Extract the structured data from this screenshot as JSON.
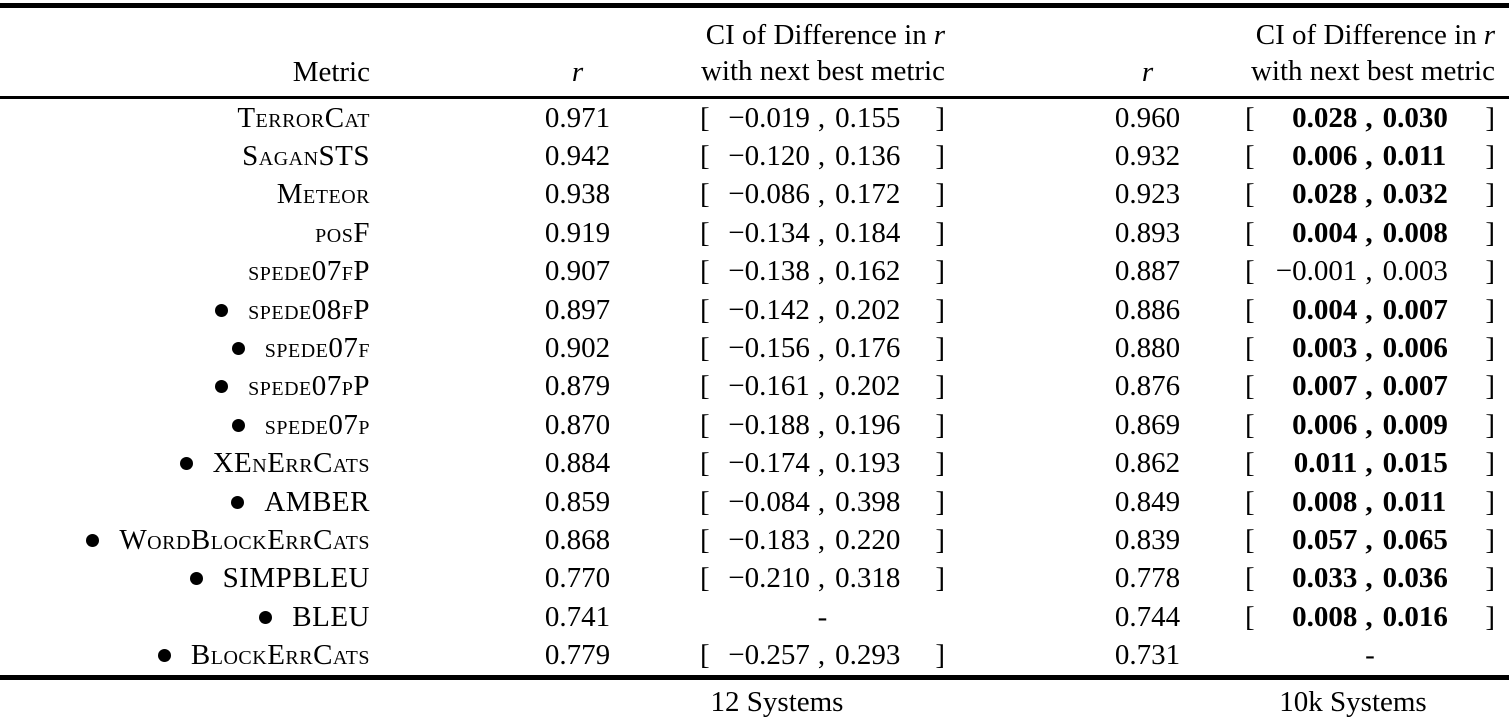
{
  "table": {
    "header": {
      "metric_label": "Metric",
      "r_label": "r",
      "ci_line1_prefix": "CI of Difference in",
      "ci_line2": "with next best metric"
    },
    "no_ci_placeholder": "-",
    "rows": [
      {
        "metric": "TerrorCat",
        "bullet": false,
        "r_12": "0.971",
        "ci_12": {
          "lo": "−0.019",
          "hi": "0.155",
          "bold": false
        },
        "r_10k": "0.960",
        "ci_10k": {
          "lo": "0.028",
          "hi": "0.030",
          "bold": true
        }
      },
      {
        "metric": "SaganSTS",
        "bullet": false,
        "r_12": "0.942",
        "ci_12": {
          "lo": "−0.120",
          "hi": "0.136",
          "bold": false
        },
        "r_10k": "0.932",
        "ci_10k": {
          "lo": "0.006",
          "hi": "0.011",
          "bold": true
        }
      },
      {
        "metric": "Meteor",
        "bullet": false,
        "r_12": "0.938",
        "ci_12": {
          "lo": "−0.086",
          "hi": "0.172",
          "bold": false
        },
        "r_10k": "0.923",
        "ci_10k": {
          "lo": "0.028",
          "hi": "0.032",
          "bold": true
        }
      },
      {
        "metric": "posF",
        "bullet": false,
        "r_12": "0.919",
        "ci_12": {
          "lo": "−0.134",
          "hi": "0.184",
          "bold": false
        },
        "r_10k": "0.893",
        "ci_10k": {
          "lo": "0.004",
          "hi": "0.008",
          "bold": true
        }
      },
      {
        "metric": "spede07fP",
        "bullet": false,
        "r_12": "0.907",
        "ci_12": {
          "lo": "−0.138",
          "hi": "0.162",
          "bold": false
        },
        "r_10k": "0.887",
        "ci_10k": {
          "lo": "−0.001",
          "hi": "0.003",
          "bold": false
        }
      },
      {
        "metric": "spede08fP",
        "bullet": true,
        "r_12": "0.897",
        "ci_12": {
          "lo": "−0.142",
          "hi": "0.202",
          "bold": false
        },
        "r_10k": "0.886",
        "ci_10k": {
          "lo": "0.004",
          "hi": "0.007",
          "bold": true
        }
      },
      {
        "metric": "spede07f",
        "bullet": true,
        "r_12": "0.902",
        "ci_12": {
          "lo": "−0.156",
          "hi": "0.176",
          "bold": false
        },
        "r_10k": "0.880",
        "ci_10k": {
          "lo": "0.003",
          "hi": "0.006",
          "bold": true
        }
      },
      {
        "metric": "spede07pP",
        "bullet": true,
        "r_12": "0.879",
        "ci_12": {
          "lo": "−0.161",
          "hi": "0.202",
          "bold": false
        },
        "r_10k": "0.876",
        "ci_10k": {
          "lo": "0.007",
          "hi": "0.007",
          "bold": true
        }
      },
      {
        "metric": "spede07p",
        "bullet": true,
        "r_12": "0.870",
        "ci_12": {
          "lo": "−0.188",
          "hi": "0.196",
          "bold": false
        },
        "r_10k": "0.869",
        "ci_10k": {
          "lo": "0.006",
          "hi": "0.009",
          "bold": true
        }
      },
      {
        "metric": "XEnErrCats",
        "bullet": true,
        "r_12": "0.884",
        "ci_12": {
          "lo": "−0.174",
          "hi": "0.193",
          "bold": false
        },
        "r_10k": "0.862",
        "ci_10k": {
          "lo": "0.011",
          "hi": "0.015",
          "bold": true
        }
      },
      {
        "metric": "AMBER",
        "bullet": true,
        "r_12": "0.859",
        "ci_12": {
          "lo": "−0.084",
          "hi": "0.398",
          "bold": false
        },
        "r_10k": "0.849",
        "ci_10k": {
          "lo": "0.008",
          "hi": "0.011",
          "bold": true
        }
      },
      {
        "metric": "WordBlockErrCats",
        "bullet": true,
        "r_12": "0.868",
        "ci_12": {
          "lo": "−0.183",
          "hi": "0.220",
          "bold": false
        },
        "r_10k": "0.839",
        "ci_10k": {
          "lo": "0.057",
          "hi": "0.065",
          "bold": true
        }
      },
      {
        "metric": "SIMPBLEU",
        "bullet": true,
        "r_12": "0.770",
        "ci_12": {
          "lo": "−0.210",
          "hi": "0.318",
          "bold": false
        },
        "r_10k": "0.778",
        "ci_10k": {
          "lo": "0.033",
          "hi": "0.036",
          "bold": true
        }
      },
      {
        "metric": "BLEU",
        "bullet": true,
        "r_12": "0.741",
        "ci_12": null,
        "r_10k": "0.744",
        "ci_10k": {
          "lo": "0.008",
          "hi": "0.016",
          "bold": true
        }
      },
      {
        "metric": "BlockErrCats",
        "bullet": true,
        "r_12": "0.779",
        "ci_12": {
          "lo": "−0.257",
          "hi": "0.293",
          "bold": false
        },
        "r_10k": "0.731",
        "ci_10k": null
      }
    ],
    "footer": {
      "left_label": "12 Systems",
      "right_label": "10k Systems"
    }
  },
  "colors": {
    "text": "#000000",
    "background": "#ffffff"
  }
}
